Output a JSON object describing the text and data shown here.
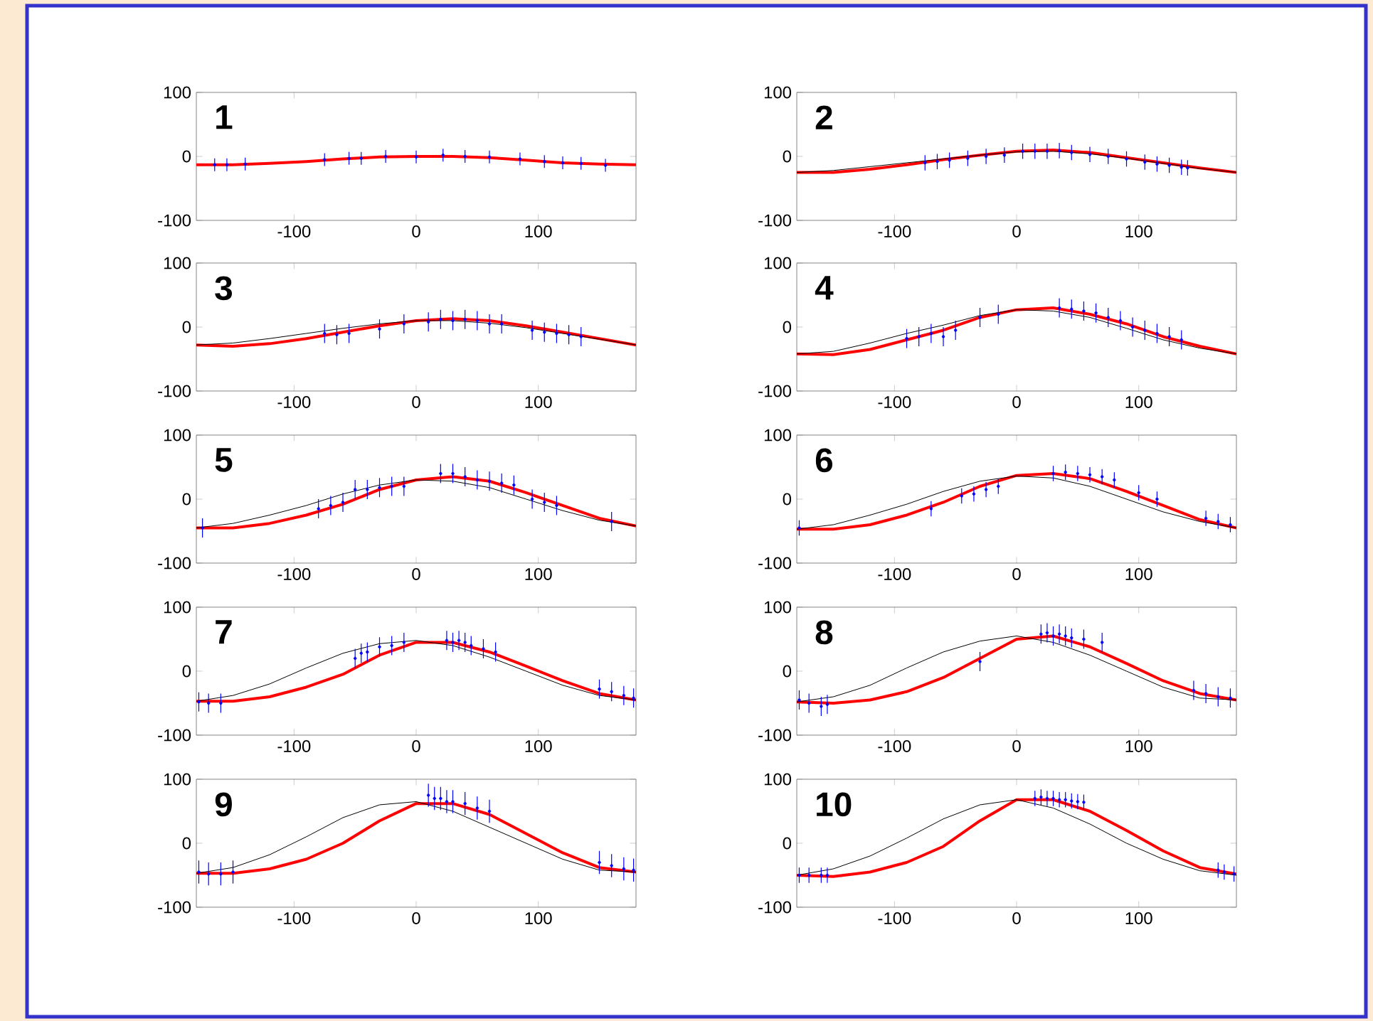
{
  "chart_data": [
    {
      "type": "line",
      "title": "1",
      "xlim": [
        -180,
        180
      ],
      "ylim": [
        -100,
        100
      ],
      "xticks": [
        -100,
        0,
        100
      ],
      "yticks": [
        -100,
        0,
        100
      ],
      "series": [
        {
          "color": "#ff0000",
          "x": [
            -180,
            -150,
            -120,
            -90,
            -60,
            -30,
            0,
            30,
            60,
            90,
            120,
            150,
            180
          ],
          "values": [
            -13,
            -13,
            -11,
            -8,
            -4,
            -1,
            0,
            0,
            -2,
            -6,
            -10,
            -12,
            -13
          ]
        },
        {
          "type": "scatter",
          "marker": "circle",
          "color": "#0000ff",
          "x": [
            -165,
            -155,
            -140,
            -75,
            -55,
            -45,
            -25,
            0,
            22,
            40,
            60,
            85,
            105,
            120,
            135,
            155
          ],
          "values": [
            -13,
            -13,
            -12,
            -5,
            -3,
            -3,
            0,
            -1,
            2,
            0,
            -1,
            -4,
            -8,
            -10,
            -11,
            -14
          ],
          "errors": [
            10,
            10,
            10,
            10,
            10,
            10,
            10,
            10,
            10,
            10,
            10,
            10,
            10,
            10,
            10,
            10
          ]
        }
      ]
    },
    {
      "type": "line",
      "title": "2",
      "xlim": [
        -180,
        180
      ],
      "ylim": [
        -100,
        100
      ],
      "xticks": [
        -100,
        0,
        100
      ],
      "yticks": [
        -100,
        0,
        100
      ],
      "series": [
        {
          "color": "#ff0000",
          "x": [
            -180,
            -150,
            -120,
            -90,
            -60,
            -30,
            0,
            30,
            60,
            90,
            120,
            150,
            180
          ],
          "values": [
            -25,
            -25,
            -20,
            -13,
            -5,
            2,
            8,
            10,
            6,
            -2,
            -10,
            -18,
            -25
          ]
        },
        {
          "color": "#000000",
          "x": [
            -180,
            -150,
            -120,
            -90,
            -60,
            -30,
            0,
            30,
            60,
            90,
            120,
            150,
            180
          ],
          "values": [
            -25,
            -22,
            -16,
            -10,
            -4,
            2,
            7,
            8,
            4,
            -3,
            -11,
            -19,
            -25
          ]
        },
        {
          "type": "scatter",
          "marker": "circle",
          "color": "#0000ff",
          "x": [
            -75,
            -65,
            -55,
            -40,
            -25,
            -10,
            5,
            15,
            25,
            35,
            45,
            60,
            75,
            90,
            105,
            115,
            125,
            135,
            140
          ],
          "values": [
            -10,
            -8,
            -6,
            -3,
            0,
            2,
            8,
            8,
            8,
            9,
            6,
            3,
            0,
            -4,
            -9,
            -12,
            -14,
            -17,
            -18
          ],
          "errors": [
            12,
            12,
            12,
            12,
            12,
            12,
            12,
            12,
            12,
            12,
            12,
            12,
            12,
            12,
            12,
            12,
            12,
            12,
            12
          ]
        }
      ]
    },
    {
      "type": "line",
      "title": "3",
      "xlim": [
        -180,
        180
      ],
      "ylim": [
        -100,
        100
      ],
      "xticks": [
        -100,
        0,
        100
      ],
      "yticks": [
        -100,
        0,
        100
      ],
      "series": [
        {
          "color": "#ff0000",
          "x": [
            -180,
            -150,
            -120,
            -90,
            -60,
            -30,
            0,
            30,
            60,
            90,
            120,
            150,
            180
          ],
          "values": [
            -28,
            -30,
            -26,
            -18,
            -8,
            2,
            10,
            13,
            10,
            2,
            -8,
            -18,
            -28
          ]
        },
        {
          "color": "#000000",
          "x": [
            -180,
            -150,
            -120,
            -90,
            -60,
            -30,
            0,
            30,
            60,
            90,
            120,
            150,
            180
          ],
          "values": [
            -28,
            -25,
            -18,
            -10,
            -2,
            5,
            10,
            10,
            6,
            -1,
            -10,
            -19,
            -28
          ]
        },
        {
          "type": "scatter",
          "marker": "circle",
          "color": "#0000ff",
          "x": [
            -75,
            -65,
            -55,
            -30,
            -10,
            10,
            20,
            30,
            40,
            50,
            60,
            70,
            95,
            105,
            115,
            125,
            135
          ],
          "values": [
            -10,
            -12,
            -10,
            -3,
            5,
            8,
            12,
            10,
            12,
            10,
            5,
            5,
            -5,
            -8,
            -10,
            -12,
            -15
          ],
          "errors": [
            15,
            15,
            15,
            15,
            15,
            15,
            15,
            15,
            15,
            15,
            15,
            15,
            15,
            15,
            15,
            15,
            15
          ]
        }
      ]
    },
    {
      "type": "line",
      "title": "4",
      "xlim": [
        -180,
        180
      ],
      "ylim": [
        -100,
        100
      ],
      "xticks": [
        -100,
        0,
        100
      ],
      "yticks": [
        -100,
        0,
        100
      ],
      "series": [
        {
          "color": "#ff0000",
          "x": [
            -180,
            -150,
            -120,
            -90,
            -60,
            -30,
            0,
            30,
            60,
            90,
            120,
            150,
            180
          ],
          "values": [
            -42,
            -43,
            -35,
            -20,
            -5,
            15,
            27,
            30,
            20,
            5,
            -15,
            -30,
            -42
          ]
        },
        {
          "color": "#000000",
          "x": [
            -180,
            -150,
            -120,
            -90,
            -60,
            -30,
            0,
            30,
            60,
            90,
            120,
            150,
            180
          ],
          "values": [
            -42,
            -38,
            -25,
            -10,
            3,
            18,
            27,
            25,
            15,
            -2,
            -20,
            -33,
            -42
          ]
        },
        {
          "type": "scatter",
          "marker": "circle",
          "color": "#0000ff",
          "x": [
            -90,
            -80,
            -70,
            -60,
            -50,
            -30,
            -15,
            35,
            45,
            55,
            65,
            75,
            85,
            95,
            105,
            115,
            125,
            135
          ],
          "values": [
            -18,
            -15,
            -10,
            -15,
            -5,
            15,
            20,
            30,
            28,
            25,
            22,
            15,
            10,
            0,
            -5,
            -10,
            -15,
            -20
          ],
          "errors": [
            15,
            15,
            15,
            15,
            15,
            15,
            15,
            15,
            15,
            15,
            15,
            15,
            15,
            15,
            15,
            15,
            15,
            15
          ]
        }
      ]
    },
    {
      "type": "line",
      "title": "5",
      "xlim": [
        -180,
        180
      ],
      "ylim": [
        -100,
        100
      ],
      "xticks": [
        -100,
        0,
        100
      ],
      "yticks": [
        -100,
        0,
        100
      ],
      "series": [
        {
          "color": "#ff0000",
          "x": [
            -180,
            -150,
            -120,
            -90,
            -60,
            -30,
            0,
            30,
            60,
            90,
            120,
            150,
            180
          ],
          "values": [
            -45,
            -45,
            -38,
            -25,
            -8,
            15,
            30,
            35,
            28,
            10,
            -10,
            -30,
            -42
          ]
        },
        {
          "color": "#000000",
          "x": [
            -180,
            -150,
            -120,
            -90,
            -60,
            -30,
            0,
            30,
            60,
            90,
            120,
            150,
            180
          ],
          "values": [
            -45,
            -38,
            -25,
            -10,
            8,
            22,
            30,
            28,
            18,
            0,
            -18,
            -33,
            -42
          ]
        },
        {
          "type": "scatter",
          "marker": "circle",
          "color": "#0000ff",
          "x": [
            -175,
            -80,
            -70,
            -60,
            -50,
            -40,
            -30,
            -20,
            -10,
            20,
            30,
            40,
            50,
            60,
            70,
            80,
            95,
            105,
            115,
            160
          ],
          "values": [
            -45,
            -15,
            -10,
            -5,
            15,
            15,
            18,
            20,
            20,
            40,
            40,
            35,
            30,
            28,
            25,
            22,
            0,
            -5,
            -10,
            -35
          ],
          "errors": [
            15,
            15,
            15,
            15,
            15,
            15,
            15,
            15,
            15,
            15,
            15,
            15,
            15,
            15,
            15,
            15,
            15,
            15,
            15,
            15
          ]
        }
      ]
    },
    {
      "type": "line",
      "title": "6",
      "xlim": [
        -180,
        180
      ],
      "ylim": [
        -100,
        100
      ],
      "xticks": [
        -100,
        0,
        100
      ],
      "yticks": [
        -100,
        0,
        100
      ],
      "series": [
        {
          "color": "#ff0000",
          "x": [
            -180,
            -150,
            -120,
            -90,
            -60,
            -30,
            0,
            30,
            60,
            90,
            120,
            150,
            180
          ],
          "values": [
            -47,
            -47,
            -40,
            -25,
            -5,
            20,
            37,
            40,
            32,
            12,
            -10,
            -32,
            -45
          ]
        },
        {
          "color": "#000000",
          "x": [
            -180,
            -150,
            -120,
            -90,
            -60,
            -30,
            0,
            30,
            60,
            90,
            120,
            150,
            180
          ],
          "values": [
            -47,
            -40,
            -25,
            -8,
            12,
            28,
            36,
            33,
            20,
            0,
            -20,
            -35,
            -45
          ]
        },
        {
          "type": "scatter",
          "marker": "circle",
          "color": "#0000ff",
          "x": [
            -178,
            -70,
            -45,
            -35,
            -25,
            -15,
            30,
            40,
            50,
            60,
            70,
            80,
            100,
            115,
            155,
            165,
            175
          ],
          "values": [
            -45,
            -15,
            5,
            8,
            15,
            20,
            40,
            42,
            40,
            38,
            35,
            30,
            10,
            0,
            -30,
            -35,
            -40
          ],
          "errors": [
            12,
            12,
            12,
            12,
            12,
            12,
            12,
            12,
            12,
            12,
            12,
            12,
            12,
            12,
            12,
            12,
            12
          ]
        }
      ]
    },
    {
      "type": "line",
      "title": "7",
      "xlim": [
        -180,
        180
      ],
      "ylim": [
        -100,
        100
      ],
      "xticks": [
        -100,
        0,
        100
      ],
      "yticks": [
        -100,
        0,
        100
      ],
      "series": [
        {
          "color": "#ff0000",
          "x": [
            -180,
            -150,
            -120,
            -90,
            -60,
            -30,
            0,
            30,
            60,
            90,
            120,
            150,
            180
          ],
          "values": [
            -47,
            -47,
            -40,
            -25,
            -5,
            25,
            45,
            45,
            30,
            8,
            -15,
            -35,
            -45
          ]
        },
        {
          "color": "#000000",
          "x": [
            -180,
            -150,
            -120,
            -90,
            -60,
            -30,
            0,
            30,
            60,
            90,
            120,
            150,
            180
          ],
          "values": [
            -47,
            -38,
            -20,
            5,
            28,
            43,
            48,
            40,
            22,
            0,
            -22,
            -38,
            -45
          ]
        },
        {
          "type": "scatter",
          "marker": "circle",
          "color": "#0000ff",
          "x": [
            -178,
            -170,
            -160,
            -50,
            -45,
            -40,
            -30,
            -20,
            -10,
            25,
            30,
            35,
            40,
            45,
            55,
            65,
            150,
            160,
            170,
            178
          ],
          "values": [
            -48,
            -50,
            -50,
            20,
            28,
            30,
            38,
            40,
            45,
            48,
            45,
            48,
            45,
            40,
            35,
            30,
            -28,
            -32,
            -38,
            -42
          ],
          "errors": [
            15,
            15,
            15,
            15,
            15,
            15,
            15,
            15,
            15,
            15,
            15,
            15,
            15,
            15,
            15,
            15,
            15,
            15,
            15,
            15
          ]
        }
      ]
    },
    {
      "type": "line",
      "title": "8",
      "xlim": [
        -180,
        180
      ],
      "ylim": [
        -100,
        100
      ],
      "xticks": [
        -100,
        0,
        100
      ],
      "yticks": [
        -100,
        0,
        100
      ],
      "series": [
        {
          "color": "#ff0000",
          "x": [
            -180,
            -150,
            -120,
            -90,
            -60,
            -30,
            0,
            30,
            60,
            90,
            120,
            150,
            180
          ],
          "values": [
            -48,
            -50,
            -45,
            -32,
            -10,
            20,
            50,
            55,
            38,
            12,
            -15,
            -35,
            -45
          ]
        },
        {
          "color": "#000000",
          "x": [
            -180,
            -150,
            -120,
            -90,
            -60,
            -30,
            0,
            30,
            60,
            90,
            120,
            150,
            180
          ],
          "values": [
            -48,
            -40,
            -22,
            5,
            30,
            47,
            55,
            45,
            25,
            0,
            -25,
            -42,
            -45
          ]
        },
        {
          "type": "scatter",
          "marker": "circle",
          "color": "#0000ff",
          "x": [
            -178,
            -170,
            -160,
            -155,
            -30,
            20,
            25,
            30,
            35,
            40,
            45,
            55,
            70,
            145,
            155,
            165,
            175
          ],
          "values": [
            -45,
            -50,
            -55,
            -52,
            15,
            58,
            60,
            55,
            58,
            55,
            52,
            50,
            45,
            -30,
            -35,
            -40,
            -42
          ],
          "errors": [
            15,
            15,
            15,
            15,
            15,
            15,
            15,
            15,
            15,
            15,
            15,
            15,
            15,
            15,
            15,
            15,
            15
          ]
        }
      ]
    },
    {
      "type": "line",
      "title": "9",
      "xlim": [
        -180,
        180
      ],
      "ylim": [
        -100,
        100
      ],
      "xticks": [
        -100,
        0,
        100
      ],
      "yticks": [
        -100,
        0,
        100
      ],
      "series": [
        {
          "color": "#ff0000",
          "x": [
            -180,
            -150,
            -120,
            -90,
            -60,
            -30,
            0,
            30,
            60,
            90,
            120,
            150,
            180
          ],
          "values": [
            -47,
            -47,
            -40,
            -25,
            0,
            35,
            62,
            62,
            45,
            15,
            -15,
            -38,
            -45
          ]
        },
        {
          "color": "#000000",
          "x": [
            -180,
            -150,
            -120,
            -90,
            -60,
            -30,
            0,
            30,
            60,
            90,
            120,
            150,
            180
          ],
          "values": [
            -47,
            -38,
            -18,
            10,
            40,
            60,
            65,
            50,
            25,
            0,
            -25,
            -42,
            -45
          ]
        },
        {
          "type": "scatter",
          "marker": "circle",
          "color": "#0000ff",
          "x": [
            -178,
            -170,
            -160,
            -150,
            10,
            15,
            20,
            25,
            30,
            40,
            50,
            60,
            150,
            160,
            170,
            178
          ],
          "values": [
            -45,
            -48,
            -48,
            -45,
            75,
            70,
            70,
            65,
            65,
            62,
            55,
            50,
            -30,
            -35,
            -40,
            -42
          ],
          "errors": [
            18,
            18,
            18,
            18,
            18,
            18,
            18,
            18,
            18,
            18,
            18,
            18,
            18,
            18,
            18,
            18
          ]
        }
      ]
    },
    {
      "type": "line",
      "title": "10",
      "xlim": [
        -180,
        180
      ],
      "ylim": [
        -100,
        100
      ],
      "xticks": [
        -100,
        0,
        100
      ],
      "yticks": [
        -100,
        0,
        100
      ],
      "series": [
        {
          "color": "#ff0000",
          "x": [
            -180,
            -150,
            -120,
            -90,
            -60,
            -30,
            0,
            30,
            60,
            90,
            120,
            150,
            180
          ],
          "values": [
            -50,
            -52,
            -45,
            -30,
            -5,
            35,
            68,
            68,
            50,
            20,
            -12,
            -38,
            -48
          ]
        },
        {
          "color": "#000000",
          "x": [
            -180,
            -150,
            -120,
            -90,
            -60,
            -30,
            0,
            30,
            60,
            90,
            120,
            150,
            180
          ],
          "values": [
            -50,
            -40,
            -20,
            8,
            38,
            60,
            68,
            55,
            30,
            0,
            -25,
            -43,
            -50
          ]
        },
        {
          "type": "scatter",
          "marker": "circle",
          "color": "#0000ff",
          "x": [
            -178,
            -170,
            -160,
            -155,
            15,
            20,
            25,
            30,
            35,
            40,
            45,
            50,
            55,
            165,
            170,
            178
          ],
          "values": [
            -50,
            -50,
            -50,
            -50,
            70,
            72,
            70,
            70,
            68,
            68,
            66,
            65,
            64,
            -42,
            -45,
            -48
          ],
          "errors": [
            12,
            12,
            12,
            12,
            12,
            12,
            12,
            12,
            12,
            12,
            12,
            12,
            12,
            12,
            12,
            12
          ]
        }
      ]
    }
  ]
}
